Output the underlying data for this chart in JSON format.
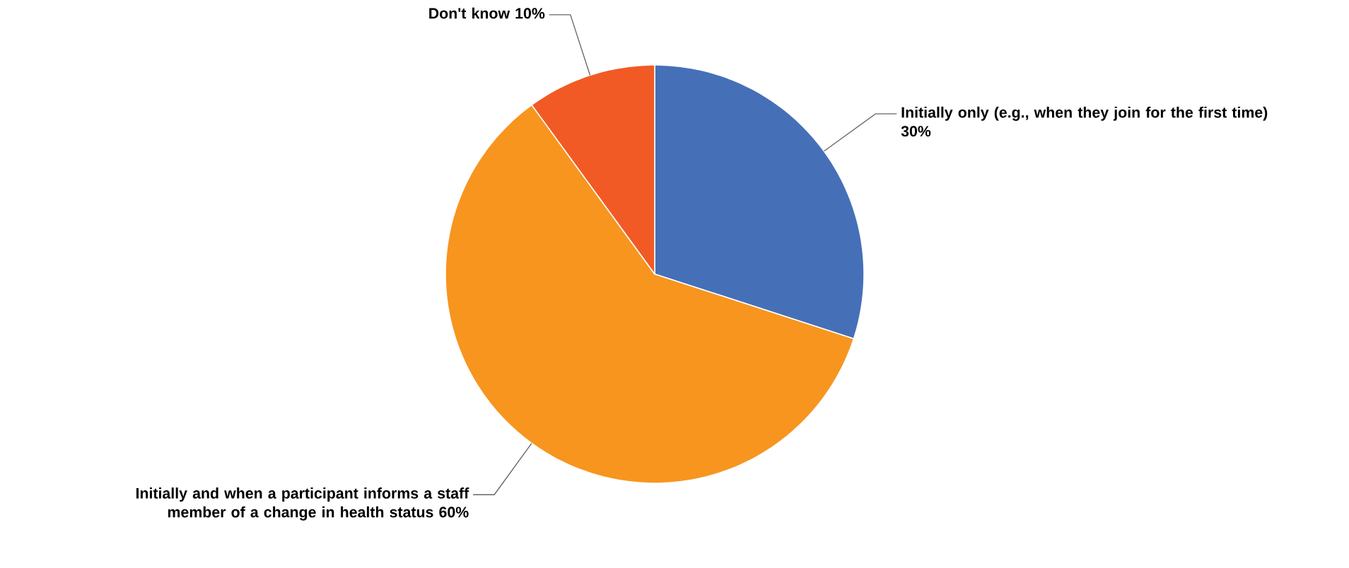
{
  "chart_data": {
    "type": "pie",
    "categories": [
      "Initially only (e.g., when they join for the first time)",
      "Initially and when a participant informs a staff member of a change in health status",
      "Don't know"
    ],
    "values": [
      30,
      60,
      10
    ],
    "value_labels": [
      "30%",
      "60%",
      "10%"
    ],
    "colors": [
      "#4570b8",
      "#f7951f",
      "#f15a25"
    ]
  }
}
